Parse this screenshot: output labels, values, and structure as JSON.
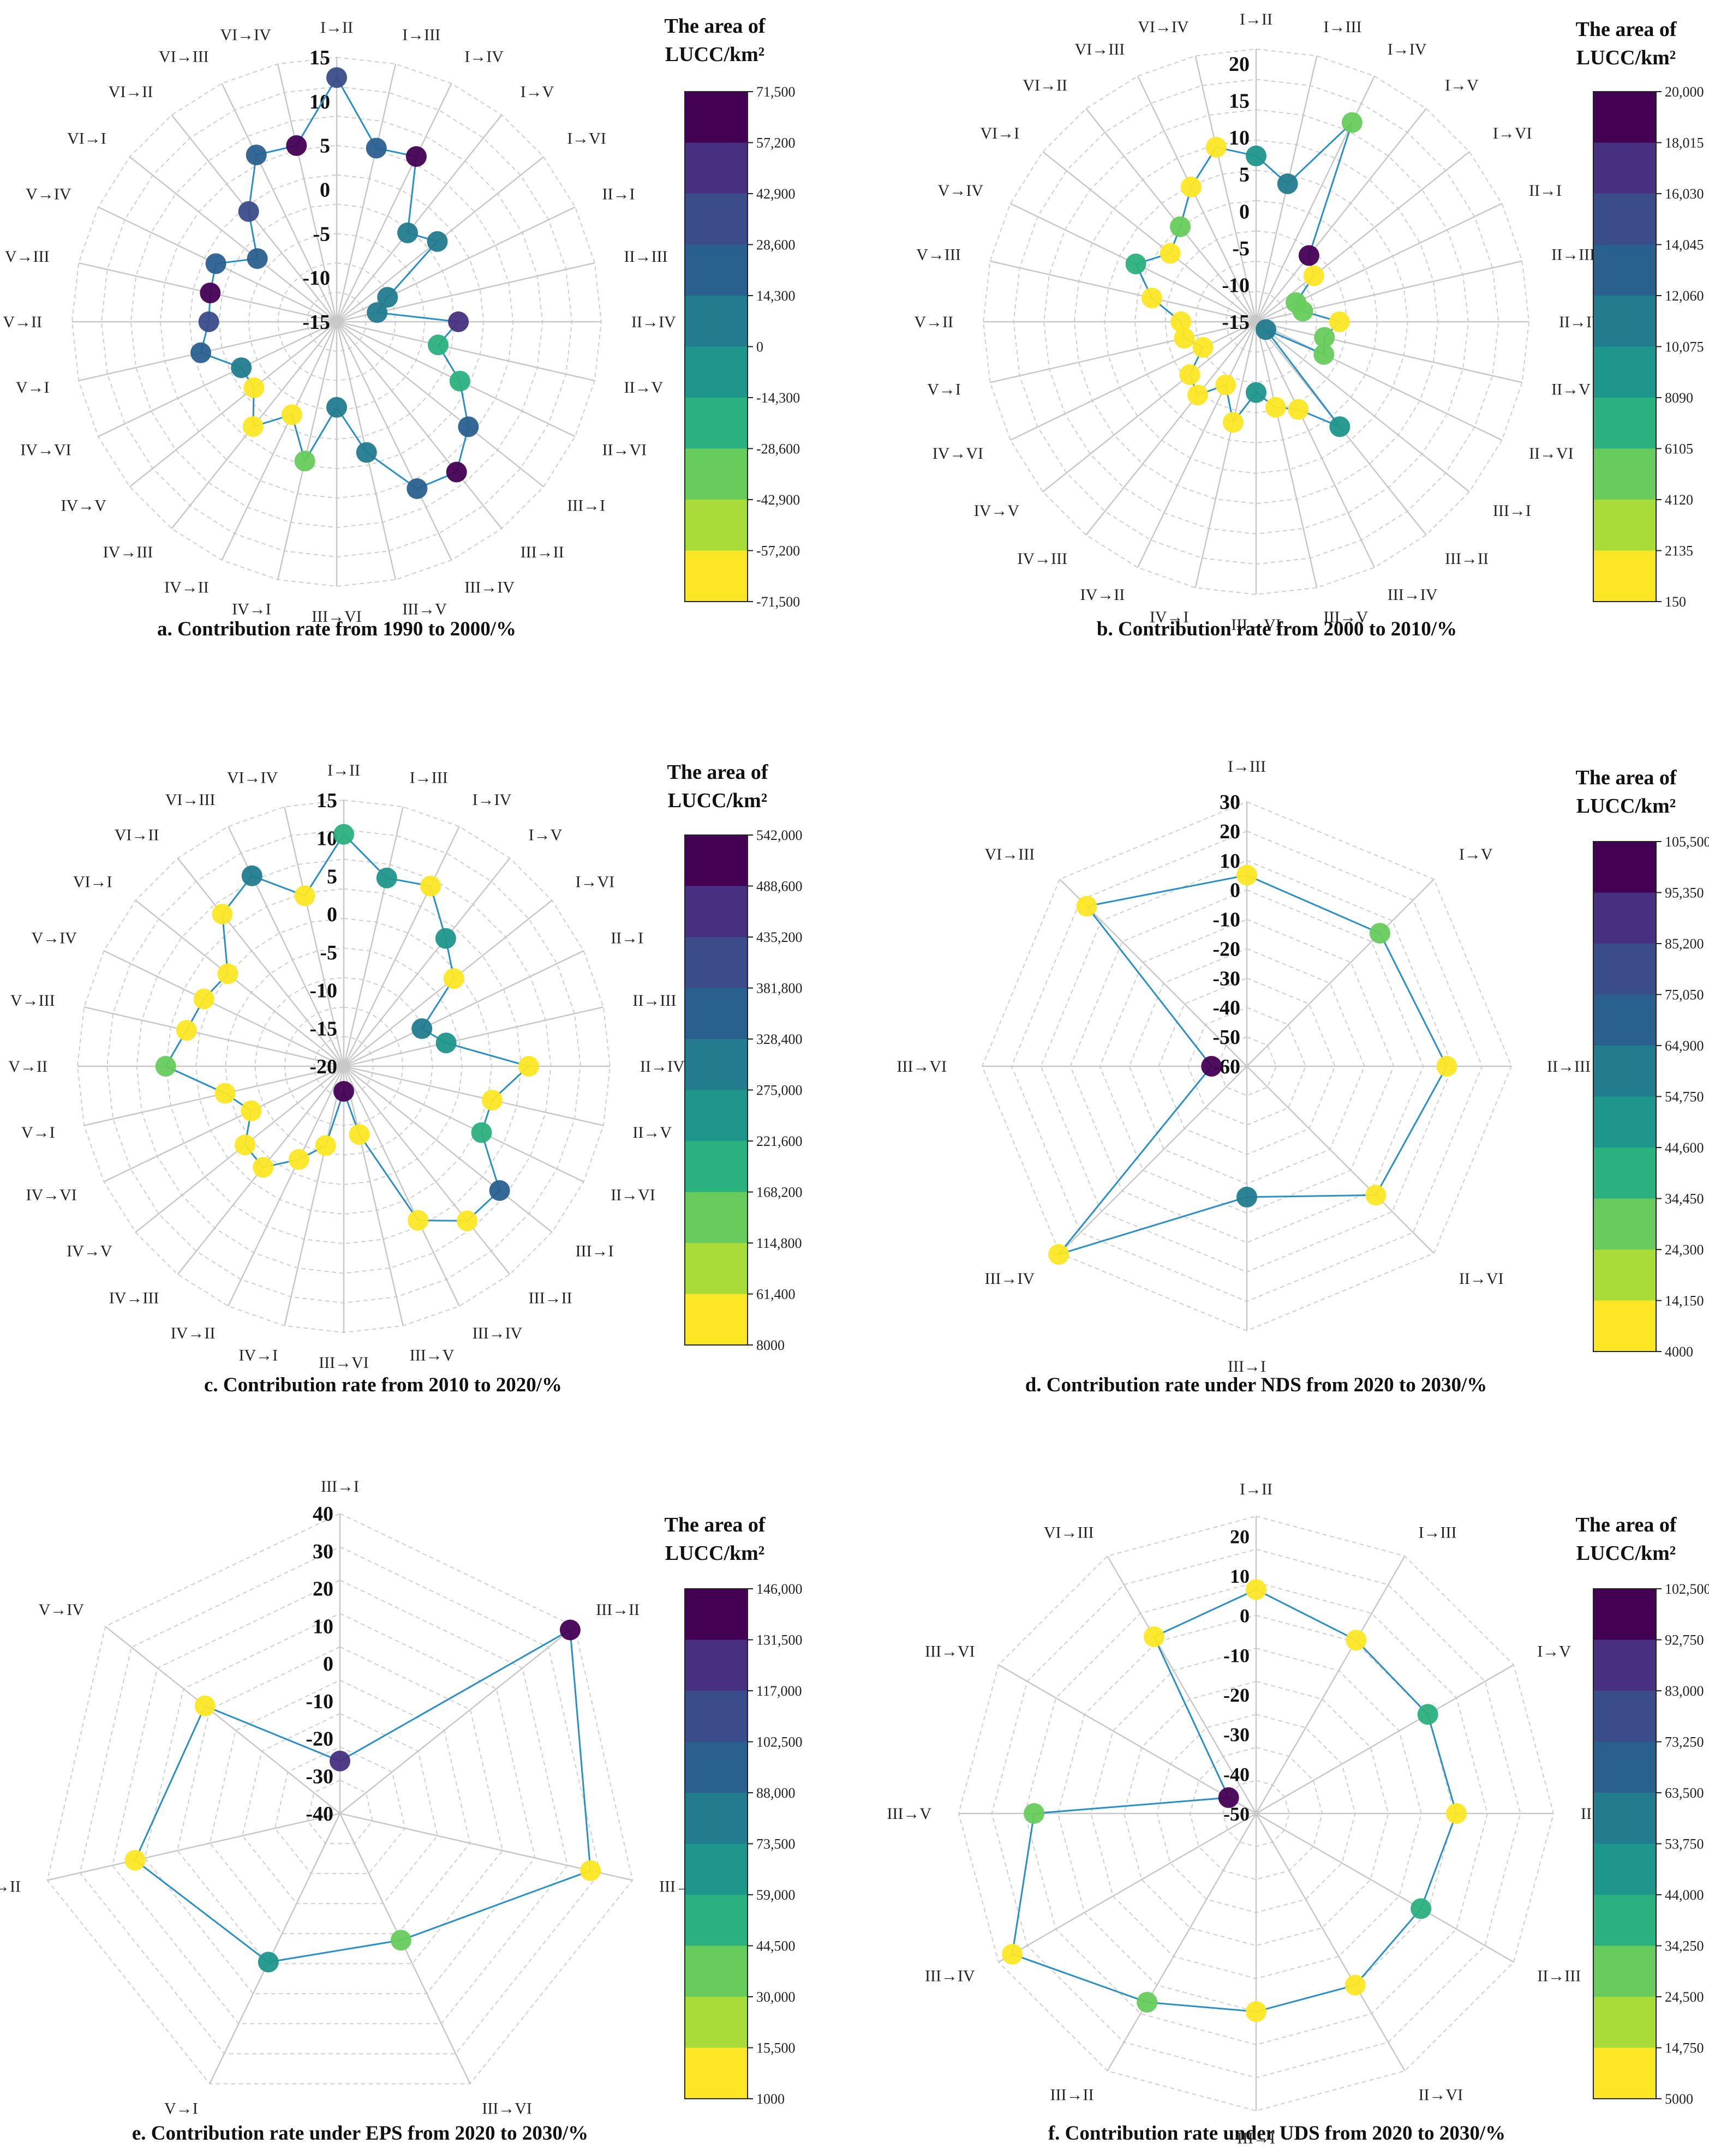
{
  "legend_title_line1": "The area of",
  "legend_title_line2": "LUCC/km²",
  "chart_data": [
    {
      "id": "a",
      "type": "radar",
      "title": "a. Contribution rate from 1990 to 2000/%",
      "categories": [
        "I→II",
        "I→III",
        "I→IV",
        "I→V",
        "I→VI",
        "II→I",
        "II→III",
        "II→IV",
        "II→V",
        "II→VI",
        "III→I",
        "III→II",
        "III→IV",
        "III→V",
        "III→VI",
        "IV→I",
        "IV→II",
        "IV→III",
        "IV→V",
        "IV→VI",
        "V→I",
        "V→II",
        "V→III",
        "V→IV",
        "VI→I",
        "VI→II",
        "VI→III",
        "VI→IV"
      ],
      "values": [
        12.7,
        5.2,
        5.8,
        -2.1,
        -0.4,
        -8.6,
        -10.3,
        -1.2,
        -3.2,
        0.5,
        4.1,
        6.8,
        6.0,
        0.2,
        -5.3,
        1.2,
        -3.3,
        0.2,
        -3.0,
        -3.0,
        0.8,
        -0.5,
        -0.3,
        0.2,
        -3.5,
        1.0,
        6.0,
        5.5
      ],
      "areas": [
        37000,
        16000,
        62000,
        12000,
        7000,
        4000,
        12000,
        50000,
        -26000,
        -20000,
        16000,
        59000,
        24000,
        14000,
        1000,
        -40000,
        -66000,
        -58000,
        -66000,
        12000,
        20000,
        32000,
        64000,
        21000,
        20000,
        35000,
        21000,
        64000
      ],
      "rlim": [
        -15,
        15
      ],
      "ticks": [
        15,
        10,
        5,
        0,
        -5,
        -10,
        -15
      ],
      "colorbar": {
        "ticks": [
          "71,500",
          "57,200",
          "42,900",
          "28,600",
          "14,300",
          "0",
          "-14,300",
          "-28,600",
          "-42,900",
          "-57,200",
          "-71,500"
        ],
        "min": -71500,
        "max": 71500
      }
    },
    {
      "id": "b",
      "type": "radar",
      "title": "b. Contribution rate from 2000 to 2010/%",
      "categories": [
        "I→II",
        "I→III",
        "I→IV",
        "I→V",
        "I→VI",
        "II→I",
        "II→III",
        "II→IV",
        "II→V",
        "II→VI",
        "III→I",
        "III→II",
        "III→IV",
        "III→V",
        "III→VI",
        "IV→I",
        "IV→II",
        "IV→III",
        "IV→V",
        "IV→VI",
        "V→I",
        "V→II",
        "V→III",
        "V→IV",
        "VI→I",
        "VI→II",
        "VI→III",
        "VI→IV"
      ],
      "values": [
        7.5,
        4.2,
        15.0,
        -3.5,
        -5.0,
        -9.0,
        -8.5,
        -3.7,
        -5.5,
        -4.8,
        -13.3,
        3.2,
        -1.8,
        -3.1,
        -5.4,
        -1.0,
        -5.5,
        -2.3,
        -3.5,
        -7.0,
        -5.0,
        -4.8,
        -0.5,
        3.1,
        -0.1,
        1.5,
        5.3,
        9.3
      ],
      "areas": [
        9500,
        10500,
        4500,
        18500,
        1000,
        4500,
        5500,
        1000,
        6000,
        4200,
        12000,
        10000,
        500,
        1000,
        9500,
        1000,
        1000,
        500,
        300,
        500,
        300,
        1000,
        1000,
        7000,
        900,
        5000,
        2000,
        1000
      ],
      "rlim": [
        -15,
        22
      ],
      "ticks": [
        20,
        15,
        10,
        5,
        0,
        -5,
        -10,
        -15
      ],
      "colorbar": {
        "ticks": [
          "20,000",
          "18,015",
          "16,030",
          "14,045",
          "12,060",
          "10,075",
          "8090",
          "6105",
          "4120",
          "2135",
          "150"
        ],
        "min": 150,
        "max": 20000
      }
    },
    {
      "id": "c",
      "type": "radar",
      "title": "c. Contribution rate from 2010 to 2020/%",
      "categories": [
        "I→II",
        "I→III",
        "I→IV",
        "I→V",
        "I→VI",
        "II→I",
        "II→III",
        "II→IV",
        "II→V",
        "II→VI",
        "III→I",
        "III→II",
        "III→IV",
        "III→V",
        "III→VI",
        "IV→I",
        "IV→II",
        "IV→III",
        "IV→V",
        "IV→VI",
        "V→I",
        "V→II",
        "V→III",
        "V→IV",
        "VI→I",
        "VI→II",
        "VI→III",
        "VI→IV"
      ],
      "values": [
        10.5,
        5.4,
        6.3,
        1.5,
        -1.5,
        -8.6,
        -6.2,
        4.3,
        0.0,
        0.1,
        6.2,
        6.0,
        2.5,
        -10.8,
        -16.7,
        -9.3,
        -6.4,
        -3.0,
        -3.4,
        -6.5,
        -4.0,
        3.4,
        1.2,
        0.4,
        -0.5,
        5.6,
        7.8,
        3.0
      ],
      "areas": [
        210000,
        240000,
        20000,
        255000,
        20000,
        320000,
        255000,
        20000,
        20000,
        190000,
        335000,
        20000,
        20000,
        20000,
        530000,
        20000,
        20000,
        20000,
        20000,
        20000,
        20000,
        120000,
        20000,
        20000,
        20000,
        20000,
        310000,
        20000
      ],
      "rlim": [
        -20,
        15
      ],
      "ticks": [
        15,
        10,
        5,
        0,
        -5,
        -10,
        -15,
        -20
      ],
      "colorbar": {
        "ticks": [
          "542,000",
          "488,600",
          "435,200",
          "381,800",
          "328,400",
          "275,000",
          "221,600",
          "168,200",
          "114,800",
          "61,400",
          "8000"
        ],
        "min": 8000,
        "max": 542000
      }
    },
    {
      "id": "d",
      "type": "radar",
      "title": "d. Contribution rate under NDS from 2020 to 2030/%",
      "categories": [
        "I→III",
        "I→V",
        "II→III",
        "II→VI",
        "III→I",
        "III→IV",
        "III→VI",
        "VI→III"
      ],
      "values": [
        5.0,
        4.0,
        8.0,
        2.0,
        -15.5,
        30.5,
        -48.0,
        17.0
      ],
      "areas": [
        10000,
        25000,
        10000,
        10000,
        55000,
        8000,
        105000,
        8000
      ],
      "rlim": [
        -60,
        30
      ],
      "ticks": [
        30,
        20,
        10,
        0,
        -10,
        -20,
        -30,
        -40,
        -50,
        -60
      ],
      "colorbar": {
        "ticks": [
          "105,500",
          "95,350",
          "85,200",
          "75,050",
          "64,900",
          "54,750",
          "44,600",
          "34,450",
          "24,300",
          "14,150",
          "4000"
        ],
        "min": 4000,
        "max": 105500
      }
    },
    {
      "id": "e",
      "type": "radar",
      "title": "e. Contribution rate under EPS from 2020 to 2030/%",
      "categories": [
        "III→I",
        "III→II",
        "III→IV",
        "III→VI",
        "V→I",
        "V→II",
        "V→IV"
      ],
      "values": [
        -26.0,
        38.5,
        28.5,
        -2.5,
        4.0,
        16.0,
        6.0
      ],
      "areas": [
        125000,
        142000,
        5000,
        35000,
        60000,
        5000,
        5000
      ],
      "rlim": [
        -40,
        40
      ],
      "ticks": [
        40,
        30,
        20,
        10,
        0,
        -10,
        -20,
        -30,
        -40
      ],
      "colorbar": {
        "ticks": [
          "146,000",
          "131,500",
          "117,000",
          "102,500",
          "88,000",
          "73,500",
          "59,000",
          "44,500",
          "30,000",
          "15,500",
          "1000"
        ],
        "min": 1000,
        "max": 146000
      }
    },
    {
      "id": "f",
      "type": "radar",
      "title": "f. Contribution rate under UDS from 2020 to 2030/%",
      "categories": [
        "I→II",
        "I→III",
        "I→V",
        "II→I",
        "II→III",
        "II→VI",
        "III→I",
        "III→II",
        "III→IV",
        "III→V",
        "III→VI",
        "VI→III"
      ],
      "values": [
        6.5,
        0.5,
        0.0,
        0.5,
        -2.0,
        0.0,
        0.0,
        5.0,
        21.0,
        6.0,
        -42.0,
        1.5
      ],
      "areas": [
        8000,
        8000,
        38000,
        8000,
        36000,
        8000,
        8000,
        30000,
        8000,
        28000,
        102000,
        8000
      ],
      "rlim": [
        -50,
        25
      ],
      "ticks": [
        20,
        10,
        0,
        -10,
        -20,
        -30,
        -40,
        -50
      ],
      "colorbar": {
        "ticks": [
          "102,500",
          "92,750",
          "83,000",
          "73,250",
          "63,500",
          "53,750",
          "44,000",
          "34,250",
          "24,500",
          "14,750",
          "5000"
        ],
        "min": 5000,
        "max": 102500
      }
    }
  ]
}
